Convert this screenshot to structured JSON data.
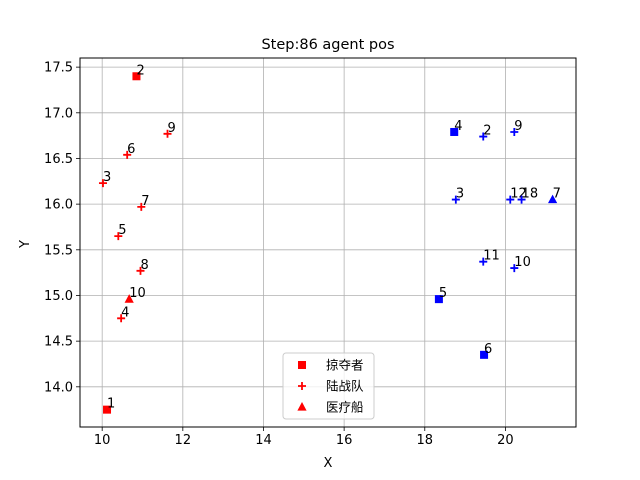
{
  "chart_data": {
    "type": "scatter",
    "title": "Step:86  agent pos",
    "xlabel": "X",
    "ylabel": "Y",
    "xlim": [
      9.45,
      21.75
    ],
    "ylim": [
      13.56,
      17.6
    ],
    "xticks": [
      10,
      12,
      14,
      16,
      18,
      20
    ],
    "yticks": [
      14.0,
      14.5,
      15.0,
      15.5,
      16.0,
      16.5,
      17.0,
      17.5
    ],
    "xtick_labels": [
      "10",
      "12",
      "14",
      "16",
      "18",
      "20"
    ],
    "ytick_labels": [
      "14.0",
      "14.5",
      "15.0",
      "15.5",
      "16.0",
      "16.5",
      "17.0",
      "17.5"
    ],
    "grid": true,
    "legend_position": "lower center",
    "colors": {
      "red": "#ff0000",
      "blue": "#0000ff"
    },
    "legend": [
      {
        "label": "掠夺者",
        "marker": "square",
        "color": "#ff0000"
      },
      {
        "label": "陆战队",
        "marker": "plus",
        "color": "#ff0000"
      },
      {
        "label": "医疗船",
        "marker": "triangle",
        "color": "#ff0000"
      }
    ],
    "points": [
      {
        "team": "red",
        "marker": "square",
        "label": "2",
        "x": 10.85,
        "y": 17.4
      },
      {
        "team": "red",
        "marker": "square",
        "label": "1",
        "x": 10.12,
        "y": 13.75
      },
      {
        "team": "red",
        "marker": "plus",
        "label": "9",
        "x": 11.62,
        "y": 16.77
      },
      {
        "team": "red",
        "marker": "plus",
        "label": "6",
        "x": 10.62,
        "y": 16.54
      },
      {
        "team": "red",
        "marker": "plus",
        "label": "3",
        "x": 10.02,
        "y": 16.23
      },
      {
        "team": "red",
        "marker": "plus",
        "label": "7",
        "x": 10.97,
        "y": 15.97
      },
      {
        "team": "red",
        "marker": "plus",
        "label": "5",
        "x": 10.4,
        "y": 15.65
      },
      {
        "team": "red",
        "marker": "plus",
        "label": "8",
        "x": 10.95,
        "y": 15.27
      },
      {
        "team": "red",
        "marker": "plus",
        "label": "4",
        "x": 10.47,
        "y": 14.75
      },
      {
        "team": "red",
        "marker": "triangle",
        "label": "10",
        "x": 10.67,
        "y": 14.96
      },
      {
        "team": "blue",
        "marker": "square",
        "label": "4",
        "x": 18.73,
        "y": 16.79
      },
      {
        "team": "blue",
        "marker": "square",
        "label": "5",
        "x": 18.35,
        "y": 14.96
      },
      {
        "team": "blue",
        "marker": "square",
        "label": "6",
        "x": 19.47,
        "y": 14.35
      },
      {
        "team": "blue",
        "marker": "plus",
        "label": "2",
        "x": 19.45,
        "y": 16.74
      },
      {
        "team": "blue",
        "marker": "plus",
        "label": "9",
        "x": 20.22,
        "y": 16.79
      },
      {
        "team": "blue",
        "marker": "plus",
        "label": "3",
        "x": 18.77,
        "y": 16.05
      },
      {
        "team": "blue",
        "marker": "plus",
        "label": "12",
        "x": 20.12,
        "y": 16.05
      },
      {
        "team": "blue",
        "marker": "plus",
        "label": "18",
        "x": 20.4,
        "y": 16.05
      },
      {
        "team": "blue",
        "marker": "plus",
        "label": "11",
        "x": 19.45,
        "y": 15.37
      },
      {
        "team": "blue",
        "marker": "plus",
        "label": "10",
        "x": 20.22,
        "y": 15.3
      },
      {
        "team": "blue",
        "marker": "triangle",
        "label": "7",
        "x": 21.17,
        "y": 16.05
      }
    ]
  }
}
